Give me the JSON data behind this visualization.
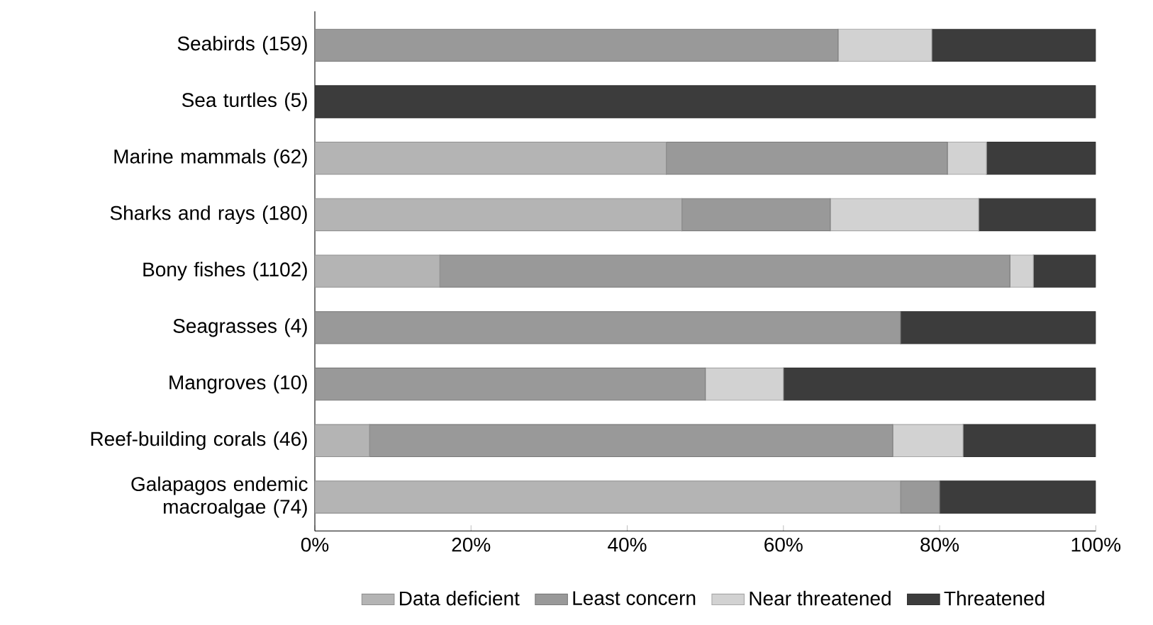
{
  "chart_data": {
    "type": "bar",
    "orientation": "horizontal",
    "stacked": true,
    "categories": [
      "Seabirds (159)",
      "Sea turtles (5)",
      "Marine mammals (62)",
      "Sharks and rays (180)",
      "Bony fishes (1102)",
      "Seagrasses (4)",
      "Mangroves (10)",
      "Reef-building corals (46)",
      "Galapagos endemic macroalgae (74)"
    ],
    "series": [
      {
        "name": "Data deficient",
        "color": "#b4b4b4",
        "values": [
          0,
          0,
          45,
          47,
          16,
          0,
          0,
          7,
          75
        ]
      },
      {
        "name": "Least concern",
        "color": "#999999",
        "values": [
          67,
          0,
          36,
          19,
          73,
          75,
          50,
          67,
          5
        ]
      },
      {
        "name": "Near threatened",
        "color": "#d2d2d2",
        "values": [
          12,
          0,
          5,
          19,
          3,
          0,
          10,
          9,
          0
        ]
      },
      {
        "name": "Threatened",
        "color": "#3c3c3c",
        "values": [
          21,
          100,
          14,
          15,
          8,
          25,
          40,
          17,
          20
        ]
      }
    ],
    "xlim": [
      0,
      100
    ],
    "xticks": [
      {
        "value": 0,
        "label": "0%"
      },
      {
        "value": 20,
        "label": "20%"
      },
      {
        "value": 40,
        "label": "40%"
      },
      {
        "value": 60,
        "label": "60%"
      },
      {
        "value": 80,
        "label": "80%"
      },
      {
        "value": 100,
        "label": "100%"
      }
    ],
    "grid": false,
    "legend": "bottom"
  }
}
